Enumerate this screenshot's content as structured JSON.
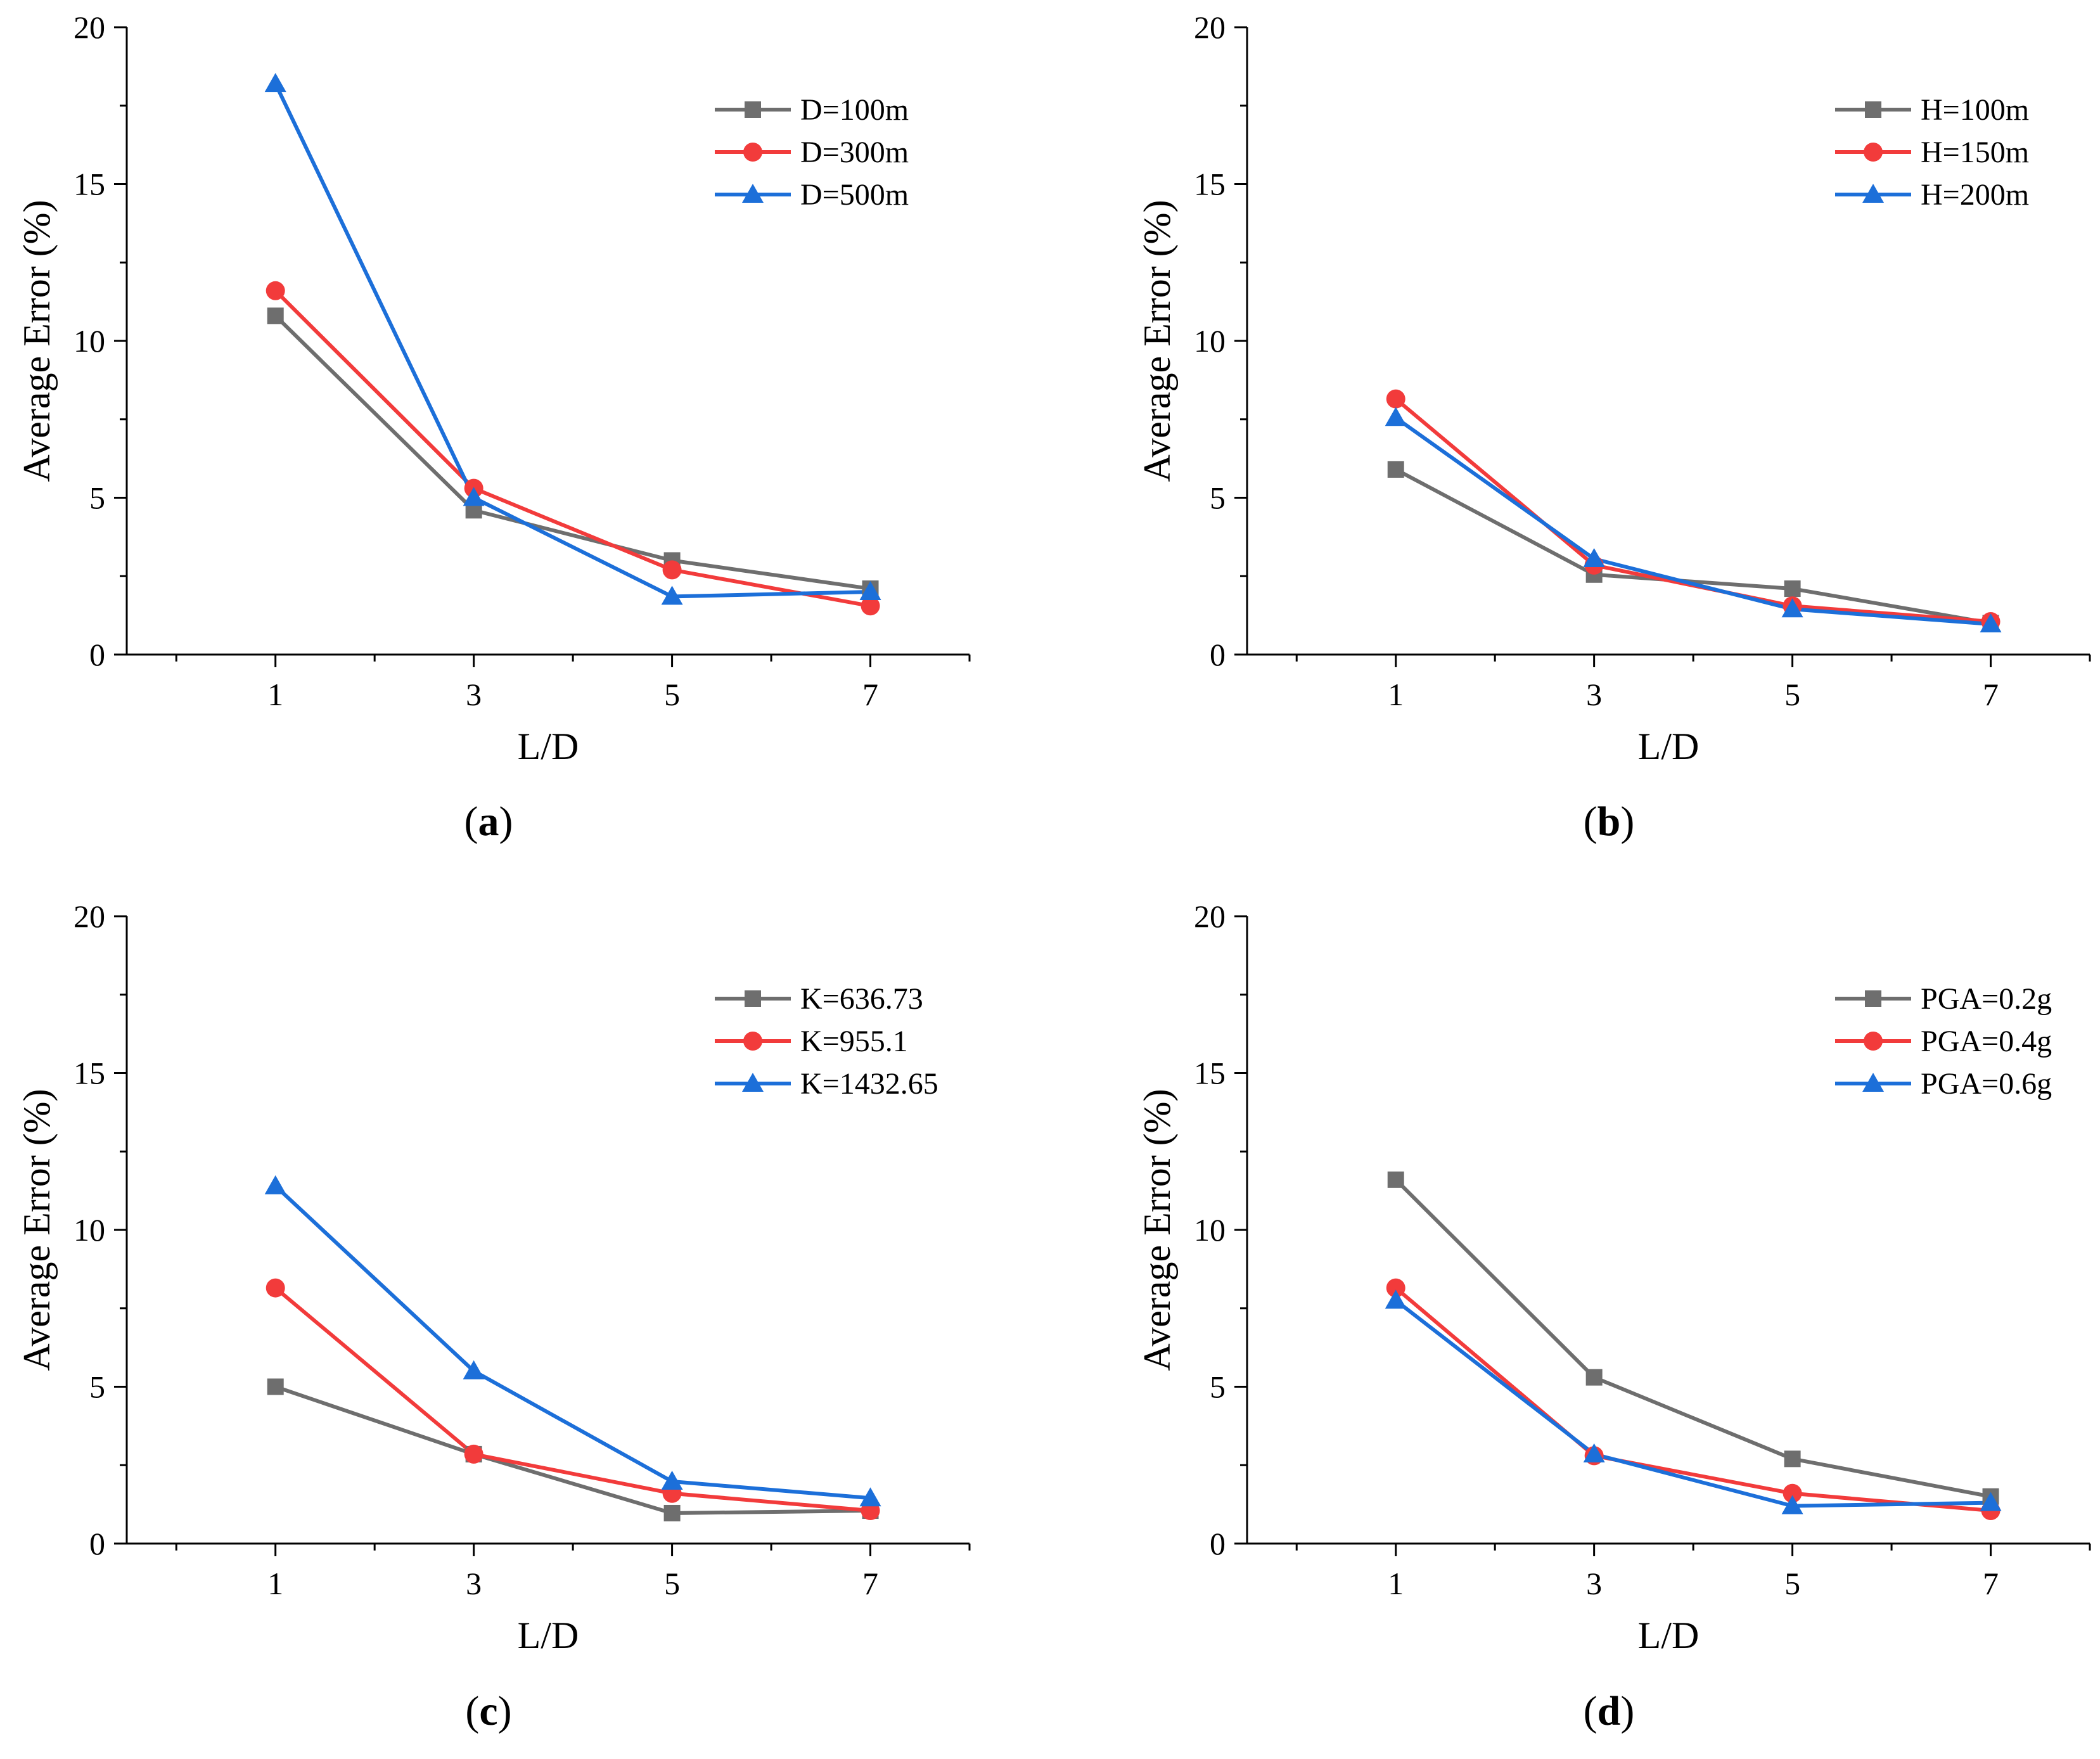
{
  "figure": {
    "marker_colors": {
      "gray": "#6e6e6e",
      "red": "#f23b3b",
      "blue": "#1c6fd9"
    }
  },
  "chart_data": [
    {
      "panel": "a",
      "type": "line",
      "xlabel": "L/D",
      "ylabel": "Average Error (%)",
      "x": [
        1,
        3,
        5,
        7
      ],
      "xticks": [
        1,
        3,
        5,
        7
      ],
      "xlim": [
        -0.5,
        8.0
      ],
      "ylim": [
        0,
        20
      ],
      "yticks": [
        0,
        5,
        10,
        15,
        20
      ],
      "legend_position": "top-right",
      "series": [
        {
          "name": "D=100m",
          "color": "#6e6e6e",
          "marker": "square",
          "values": [
            10.8,
            4.6,
            3.0,
            2.1
          ]
        },
        {
          "name": "D=300m",
          "color": "#f23b3b",
          "marker": "circle",
          "values": [
            11.6,
            5.3,
            2.7,
            1.55
          ]
        },
        {
          "name": "D=500m",
          "color": "#1c6fd9",
          "marker": "triangle",
          "values": [
            18.2,
            5.0,
            1.85,
            2.0
          ]
        }
      ]
    },
    {
      "panel": "b",
      "type": "line",
      "xlabel": "L/D",
      "ylabel": "Average Error (%)",
      "x": [
        1,
        3,
        5,
        7
      ],
      "xticks": [
        1,
        3,
        5,
        7
      ],
      "xlim": [
        -0.5,
        8.0
      ],
      "ylim": [
        0,
        20
      ],
      "yticks": [
        0,
        5,
        10,
        15,
        20
      ],
      "legend_position": "top-right",
      "series": [
        {
          "name": "H=100m",
          "color": "#6e6e6e",
          "marker": "square",
          "values": [
            5.9,
            2.55,
            2.1,
            1.0
          ]
        },
        {
          "name": "H=150m",
          "color": "#f23b3b",
          "marker": "circle",
          "values": [
            8.15,
            2.85,
            1.55,
            1.05
          ]
        },
        {
          "name": "H=200m",
          "color": "#1c6fd9",
          "marker": "triangle",
          "values": [
            7.55,
            3.05,
            1.45,
            0.97
          ]
        }
      ]
    },
    {
      "panel": "c",
      "type": "line",
      "xlabel": "L/D",
      "ylabel": "Average Error (%)",
      "x": [
        1,
        3,
        5,
        7
      ],
      "xticks": [
        1,
        3,
        5,
        7
      ],
      "xlim": [
        -0.5,
        8.0
      ],
      "ylim": [
        0,
        20
      ],
      "yticks": [
        0,
        5,
        10,
        15,
        20
      ],
      "legend_position": "top-right",
      "series": [
        {
          "name": "K=636.73",
          "color": "#6e6e6e",
          "marker": "square",
          "values": [
            5.0,
            2.85,
            0.97,
            1.05
          ]
        },
        {
          "name": "K=955.1",
          "color": "#f23b3b",
          "marker": "circle",
          "values": [
            8.15,
            2.85,
            1.6,
            1.05
          ]
        },
        {
          "name": "K=1432.65",
          "color": "#1c6fd9",
          "marker": "triangle",
          "values": [
            11.4,
            5.5,
            1.98,
            1.45
          ]
        }
      ]
    },
    {
      "panel": "d",
      "type": "line",
      "xlabel": "L/D",
      "ylabel": "Average Error (%)",
      "x": [
        1,
        3,
        5,
        7
      ],
      "xticks": [
        1,
        3,
        5,
        7
      ],
      "xlim": [
        -0.5,
        8.0
      ],
      "ylim": [
        0,
        20
      ],
      "yticks": [
        0,
        5,
        10,
        15,
        20
      ],
      "legend_position": "top-right",
      "series": [
        {
          "name": "PGA=0.2g",
          "color": "#6e6e6e",
          "marker": "square",
          "values": [
            11.6,
            5.3,
            2.7,
            1.5
          ]
        },
        {
          "name": "PGA=0.4g",
          "color": "#f23b3b",
          "marker": "circle",
          "values": [
            8.15,
            2.8,
            1.6,
            1.05
          ]
        },
        {
          "name": "PGA=0.6g",
          "color": "#1c6fd9",
          "marker": "triangle",
          "values": [
            7.75,
            2.85,
            1.2,
            1.3
          ]
        }
      ]
    }
  ],
  "panel_labels": [
    {
      "open": "(",
      "letter": "a",
      "close": ")"
    },
    {
      "open": "(",
      "letter": "b",
      "close": ")"
    },
    {
      "open": "(",
      "letter": "c",
      "close": ")"
    },
    {
      "open": "(",
      "letter": "d",
      "close": ")"
    }
  ]
}
